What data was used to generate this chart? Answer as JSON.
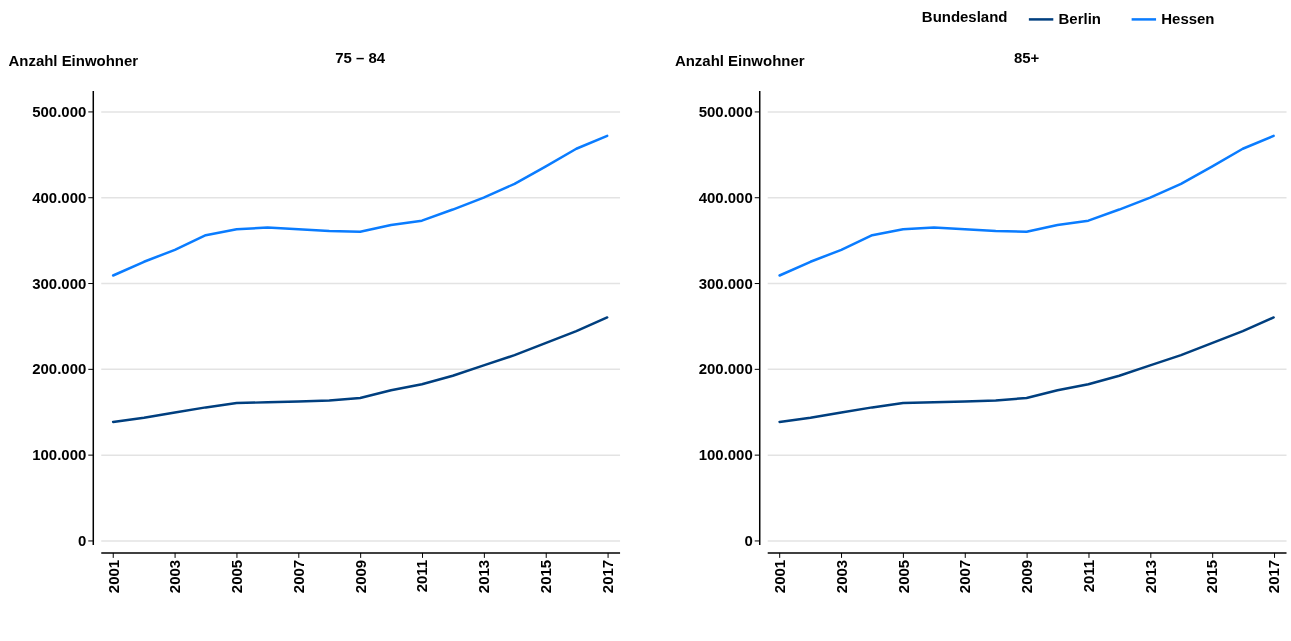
{
  "chart_data": [
    {
      "type": "line",
      "title": "75 – 84",
      "ylabel": "Anzahl Einwohner",
      "grid": "y",
      "x": [
        2001,
        2002,
        2003,
        2004,
        2005,
        2006,
        2007,
        2008,
        2009,
        2010,
        2011,
        2012,
        2013,
        2014,
        2015,
        2016,
        2017
      ],
      "xlim": [
        2000.6,
        2017.4
      ],
      "xticks": [
        2001,
        2003,
        2005,
        2007,
        2009,
        2011,
        2013,
        2015,
        2017
      ],
      "ylim": [
        -5000,
        525000
      ],
      "yticks": [
        {
          "value": 0,
          "label": "0"
        },
        {
          "value": 100000,
          "label": "100.000"
        },
        {
          "value": 200000,
          "label": "200.000"
        },
        {
          "value": 300000,
          "label": "300.000"
        },
        {
          "value": 400000,
          "label": "400.000"
        },
        {
          "value": 500000,
          "label": "500.000"
        }
      ],
      "series": [
        {
          "color": "#003f7f",
          "values": [
            138000,
            143000,
            149000,
            155000,
            160000,
            161000,
            162000,
            163000,
            166000,
            175000,
            182000,
            192000,
            204000,
            216000,
            230000,
            244000,
            260000
          ]
        },
        {
          "color": "#0a7cff",
          "values": [
            309000,
            325000,
            339000,
            356000,
            363000,
            365000,
            363000,
            361000,
            360000,
            368000,
            373000,
            386000,
            400000,
            416000,
            436000,
            457000,
            472000
          ]
        }
      ]
    },
    {
      "type": "line",
      "title": "85+",
      "ylabel": "Anzahl Einwohner",
      "legend_title": "Bundesland",
      "legend": "top right",
      "grid": "y",
      "x": [
        2001,
        2002,
        2003,
        2004,
        2005,
        2006,
        2007,
        2008,
        2009,
        2010,
        2011,
        2012,
        2013,
        2014,
        2015,
        2016,
        2017
      ],
      "xlim": [
        2000.6,
        2017.4
      ],
      "xticks": [
        2001,
        2003,
        2005,
        2007,
        2009,
        2011,
        2013,
        2015,
        2017
      ],
      "ylim": [
        -5000,
        525000
      ],
      "yticks": [
        {
          "value": 0,
          "label": "0"
        },
        {
          "value": 100000,
          "label": "100.000"
        },
        {
          "value": 200000,
          "label": "200.000"
        },
        {
          "value": 300000,
          "label": "300.000"
        },
        {
          "value": 400000,
          "label": "400.000"
        },
        {
          "value": 500000,
          "label": "500.000"
        }
      ],
      "series": [
        {
          "name": "Berlin",
          "color": "#003f7f",
          "values": [
            138000,
            143000,
            149000,
            155000,
            160000,
            161000,
            162000,
            163000,
            166000,
            175000,
            182000,
            192000,
            204000,
            216000,
            230000,
            244000,
            260000
          ]
        },
        {
          "name": "Hessen",
          "color": "#0a7cff",
          "values": [
            309000,
            325000,
            339000,
            356000,
            363000,
            365000,
            363000,
            361000,
            360000,
            368000,
            373000,
            386000,
            400000,
            416000,
            436000,
            457000,
            472000
          ]
        }
      ]
    }
  ]
}
